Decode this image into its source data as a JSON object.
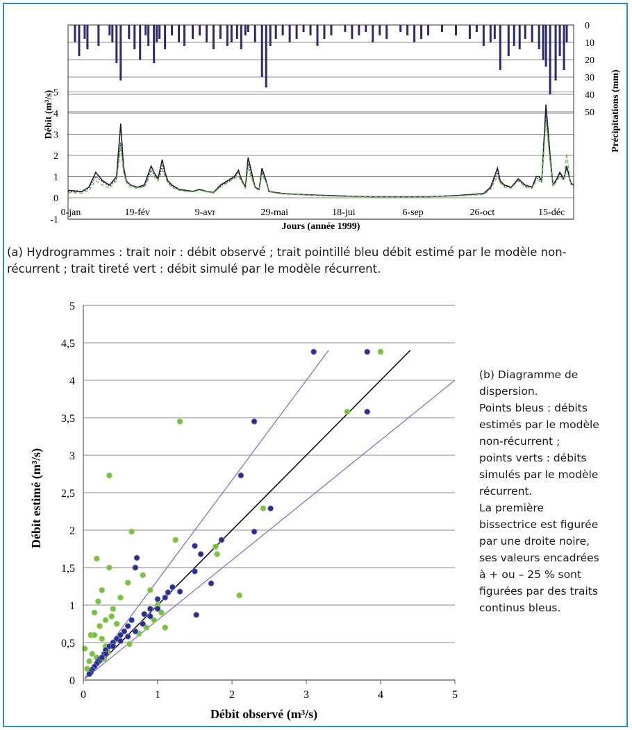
{
  "colors": {
    "observed": "#222222",
    "nonrecurrent": "#2b2f86",
    "recurrent": "#79c044",
    "precip": "#2b2a6a",
    "grid": "#888888",
    "band": "#7d78c0",
    "frame": "#2e8bc0"
  },
  "chart_a": {
    "ylabel_left": "Débit (m³/s)",
    "ylabel_right": "Précipitations (mm)",
    "xlabel": "Jours (année 1999)",
    "y_ticks": [
      "-1",
      "0",
      "1",
      "2",
      "3",
      "4",
      "5"
    ],
    "precip_ticks": [
      "0",
      "10",
      "20",
      "30",
      "40",
      "50"
    ],
    "x_ticks": [
      "0-jan",
      "19-fév",
      "9-avr",
      "29-mai",
      "18-jui",
      "6-sep",
      "26-oct",
      "15-déc"
    ]
  },
  "caption_a": "(a) Hydrogrammes : trait noir : débit observé ; trait pointillé bleu débit estimé par le modèle non-récurrent ; trait tireté vert : débit simulé par le modèle récurrent.",
  "chart_b": {
    "xlabel": "Débit observé (m³/s)",
    "ylabel": "Débit estimé (m³/s)",
    "x_ticks": [
      "0",
      "1",
      "2",
      "3",
      "4",
      "5"
    ],
    "y_ticks": [
      "0",
      "0,5",
      "1",
      "1,5",
      "2",
      "2,5",
      "3",
      "3,5",
      "4",
      "4,5",
      "5"
    ]
  },
  "caption_b": [
    "(b) Diagramme de",
    "dispersion.",
    "Points bleus : débits",
    "estimés par le modèle",
    "non-récurrent ;",
    "points verts : débits",
    "simulés par le modèle",
    "récurrent.",
    "La première",
    "bissectrice est figurée",
    "par une droite noire,",
    "ses valeurs encadrées",
    "à + ou – 25 % sont",
    "figurées par des traits",
    "continus bleus."
  ],
  "chart_data": [
    {
      "type": "line",
      "x_unit": "day of year 1999",
      "xlim": [
        0,
        365
      ],
      "ylim": [
        -1,
        5
      ],
      "series": [
        {
          "name": "débit observé",
          "x": [
            0,
            10,
            15,
            20,
            25,
            30,
            35,
            38,
            40,
            42,
            45,
            50,
            55,
            60,
            62,
            65,
            68,
            70,
            72,
            75,
            80,
            85,
            90,
            95,
            100,
            105,
            110,
            115,
            120,
            123,
            125,
            128,
            130,
            135,
            138,
            140,
            143,
            145,
            150,
            155,
            160,
            170,
            180,
            190,
            200,
            220,
            240,
            260,
            280,
            300,
            305,
            310,
            312,
            315,
            320,
            325,
            330,
            335,
            338,
            340,
            342,
            345,
            348,
            350,
            352,
            355,
            358,
            360,
            363,
            365
          ],
          "y": [
            0.35,
            0.3,
            0.5,
            1.2,
            0.8,
            0.6,
            1.0,
            3.5,
            1.5,
            0.8,
            0.6,
            0.5,
            0.6,
            1.5,
            1.2,
            0.9,
            1.8,
            1.2,
            0.8,
            0.6,
            0.4,
            0.35,
            0.3,
            0.4,
            0.3,
            0.25,
            0.6,
            0.8,
            1.0,
            1.3,
            0.9,
            0.5,
            1.9,
            0.5,
            0.4,
            1.4,
            0.8,
            0.3,
            0.25,
            0.2,
            0.18,
            0.15,
            0.12,
            0.1,
            0.08,
            0.05,
            0.05,
            0.05,
            0.1,
            0.2,
            0.5,
            1.4,
            0.8,
            0.6,
            0.5,
            0.9,
            0.6,
            0.5,
            1.0,
            1.0,
            0.8,
            4.4,
            2.0,
            0.6,
            0.8,
            1.2,
            0.9,
            1.5,
            0.7,
            0.6
          ]
        },
        {
          "name": "débit estimé non-récurrent",
          "x": [
            0,
            10,
            15,
            20,
            25,
            30,
            35,
            38,
            40,
            42,
            45,
            50,
            55,
            60,
            62,
            65,
            68,
            70,
            72,
            75,
            80,
            85,
            90,
            95,
            100,
            105,
            110,
            115,
            120,
            123,
            125,
            128,
            130,
            135,
            138,
            140,
            143,
            145,
            150,
            155,
            160,
            170,
            180,
            190,
            200,
            220,
            240,
            260,
            280,
            300,
            305,
            310,
            312,
            315,
            320,
            325,
            330,
            335,
            338,
            340,
            342,
            345,
            348,
            350,
            352,
            355,
            358,
            360,
            363,
            365
          ],
          "y": [
            0.3,
            0.28,
            0.45,
            1.0,
            0.75,
            0.55,
            0.9,
            2.6,
            1.4,
            0.8,
            0.6,
            0.5,
            0.55,
            1.3,
            1.1,
            0.85,
            1.5,
            1.1,
            0.75,
            0.55,
            0.38,
            0.33,
            0.3,
            0.38,
            0.3,
            0.25,
            0.55,
            0.75,
            0.95,
            1.2,
            0.85,
            0.5,
            1.6,
            0.5,
            0.4,
            1.2,
            0.75,
            0.3,
            0.25,
            0.2,
            0.18,
            0.15,
            0.12,
            0.1,
            0.08,
            0.05,
            0.05,
            0.05,
            0.1,
            0.2,
            0.45,
            1.2,
            0.75,
            0.55,
            0.5,
            0.85,
            0.55,
            0.5,
            0.9,
            0.9,
            0.75,
            3.9,
            1.8,
            0.6,
            0.75,
            1.1,
            0.85,
            1.4,
            0.65,
            0.6
          ]
        },
        {
          "name": "débit simulé récurrent",
          "x": [
            0,
            10,
            15,
            20,
            25,
            30,
            35,
            38,
            40,
            42,
            45,
            50,
            55,
            60,
            62,
            65,
            68,
            70,
            72,
            75,
            80,
            85,
            90,
            95,
            100,
            105,
            110,
            115,
            120,
            123,
            125,
            128,
            130,
            135,
            138,
            140,
            143,
            145,
            150,
            155,
            160,
            170,
            180,
            190,
            200,
            220,
            240,
            260,
            280,
            300,
            305,
            310,
            312,
            315,
            320,
            325,
            330,
            335,
            338,
            340,
            342,
            345,
            348,
            350,
            352,
            355,
            358,
            360,
            363,
            365
          ],
          "y": [
            0.25,
            0.22,
            0.35,
            0.8,
            0.6,
            0.45,
            0.8,
            2.4,
            1.2,
            0.7,
            0.5,
            0.45,
            0.5,
            1.1,
            1.0,
            0.8,
            1.3,
            1.0,
            0.7,
            0.5,
            0.35,
            0.3,
            0.28,
            0.35,
            0.28,
            0.22,
            0.5,
            0.7,
            0.9,
            1.0,
            0.8,
            0.45,
            1.4,
            0.45,
            0.35,
            1.1,
            0.7,
            0.28,
            0.22,
            0.18,
            0.16,
            0.13,
            0.1,
            0.08,
            0.06,
            0.04,
            0.04,
            0.04,
            0.08,
            0.15,
            0.4,
            1.0,
            0.7,
            0.5,
            0.45,
            0.8,
            0.5,
            0.45,
            0.8,
            0.8,
            0.7,
            3.6,
            1.7,
            0.55,
            0.7,
            1.0,
            0.8,
            2.1,
            0.6,
            0.55
          ]
        }
      ],
      "precipitation": {
        "name": "précipitations (mm)",
        "ylim": [
          0,
          60
        ],
        "x": [
          5,
          8,
          12,
          14,
          22,
          30,
          32,
          35,
          38,
          44,
          48,
          52,
          56,
          58,
          62,
          64,
          66,
          70,
          75,
          80,
          84,
          90,
          95,
          100,
          105,
          110,
          115,
          118,
          122,
          125,
          128,
          130,
          135,
          140,
          143,
          146,
          150,
          155,
          160,
          165,
          170,
          175,
          180,
          185,
          190,
          200,
          205,
          210,
          215,
          220,
          225,
          230,
          240,
          245,
          250,
          255,
          260,
          270,
          280,
          290,
          295,
          300,
          305,
          308,
          312,
          318,
          322,
          326,
          330,
          335,
          340,
          343,
          345,
          348,
          352,
          355,
          358,
          360
        ],
        "y": [
          10,
          18,
          8,
          14,
          12,
          6,
          10,
          22,
          32,
          8,
          14,
          20,
          6,
          12,
          22,
          10,
          8,
          14,
          6,
          10,
          12,
          8,
          6,
          10,
          14,
          8,
          12,
          10,
          8,
          14,
          6,
          4,
          10,
          30,
          36,
          12,
          8,
          6,
          10,
          8,
          4,
          6,
          12,
          8,
          6,
          4,
          8,
          6,
          4,
          10,
          6,
          8,
          4,
          6,
          10,
          8,
          6,
          4,
          6,
          8,
          4,
          12,
          10,
          8,
          26,
          18,
          12,
          14,
          8,
          10,
          14,
          20,
          24,
          40,
          32,
          18,
          26,
          10
        ]
      }
    },
    {
      "type": "scatter",
      "xlim": [
        0,
        5
      ],
      "ylim": [
        0,
        5
      ],
      "reference_lines": [
        {
          "name": "bissectrice",
          "slope": 1
        },
        {
          "name": "+25 %",
          "slope": 1.333
        },
        {
          "name": "-25 %",
          "slope": 0.8
        }
      ],
      "series": [
        {
          "name": "points bleus (non-récurrent)",
          "x": [
            3.1,
            3.82,
            3.82,
            2.3,
            2.12,
            2.52,
            2.3,
            1.86,
            1.5,
            1.58,
            1.5,
            1.72,
            1.52,
            1.2,
            1.14,
            1.1,
            1.3,
            1.0,
            0.9,
            0.82,
            0.72,
            0.7,
            0.65,
            0.6,
            0.55,
            0.5,
            0.45,
            0.4,
            0.35,
            0.3,
            0.28,
            0.25,
            0.22,
            0.2,
            0.18,
            0.15,
            0.12,
            0.1,
            0.08,
            1.0,
            0.9,
            0.8,
            0.7,
            0.6,
            0.5,
            0.4,
            0.3,
            0.25
          ],
          "y": [
            4.38,
            4.38,
            3.58,
            3.45,
            2.73,
            2.29,
            1.98,
            1.87,
            1.79,
            1.68,
            1.45,
            1.29,
            0.87,
            1.24,
            1.17,
            1.1,
            1.18,
            1.08,
            0.95,
            0.88,
            1.63,
            1.5,
            0.8,
            0.72,
            0.65,
            0.6,
            0.55,
            0.5,
            0.45,
            0.4,
            0.35,
            0.3,
            0.28,
            0.25,
            0.22,
            0.18,
            0.14,
            0.1,
            0.08,
            0.95,
            0.85,
            0.75,
            0.65,
            0.58,
            0.52,
            0.45,
            0.35,
            0.3
          ]
        },
        {
          "name": "points verts (récurrent)",
          "x": [
            4.0,
            4.0,
            3.55,
            1.3,
            0.35,
            2.42,
            0.65,
            1.78,
            1.8,
            1.24,
            2.1,
            0.18,
            0.35,
            0.25,
            0.2,
            0.15,
            0.1,
            0.3,
            0.4,
            0.5,
            0.6,
            0.7,
            0.8,
            0.9,
            1.0,
            1.1,
            0.45,
            0.55,
            0.25,
            0.3,
            0.12,
            0.08,
            0.05,
            0.02,
            0.15,
            0.22,
            0.38,
            0.48,
            0.62,
            0.75,
            0.85,
            0.95,
            1.05,
            0.33,
            0.28,
            0.18
          ],
          "y": [
            4.38,
            4.38,
            3.58,
            3.45,
            2.73,
            2.29,
            1.98,
            1.78,
            1.68,
            1.87,
            1.13,
            1.62,
            1.5,
            1.2,
            1.05,
            0.9,
            0.6,
            0.8,
            0.95,
            1.1,
            1.3,
            1.5,
            1.4,
            1.2,
            1.0,
            0.7,
            0.75,
            0.65,
            0.55,
            0.45,
            0.35,
            0.25,
            0.15,
            0.42,
            0.6,
            0.72,
            0.85,
            0.55,
            0.48,
            0.62,
            0.7,
            0.8,
            0.9,
            0.38,
            0.28,
            0.3
          ]
        }
      ]
    }
  ]
}
